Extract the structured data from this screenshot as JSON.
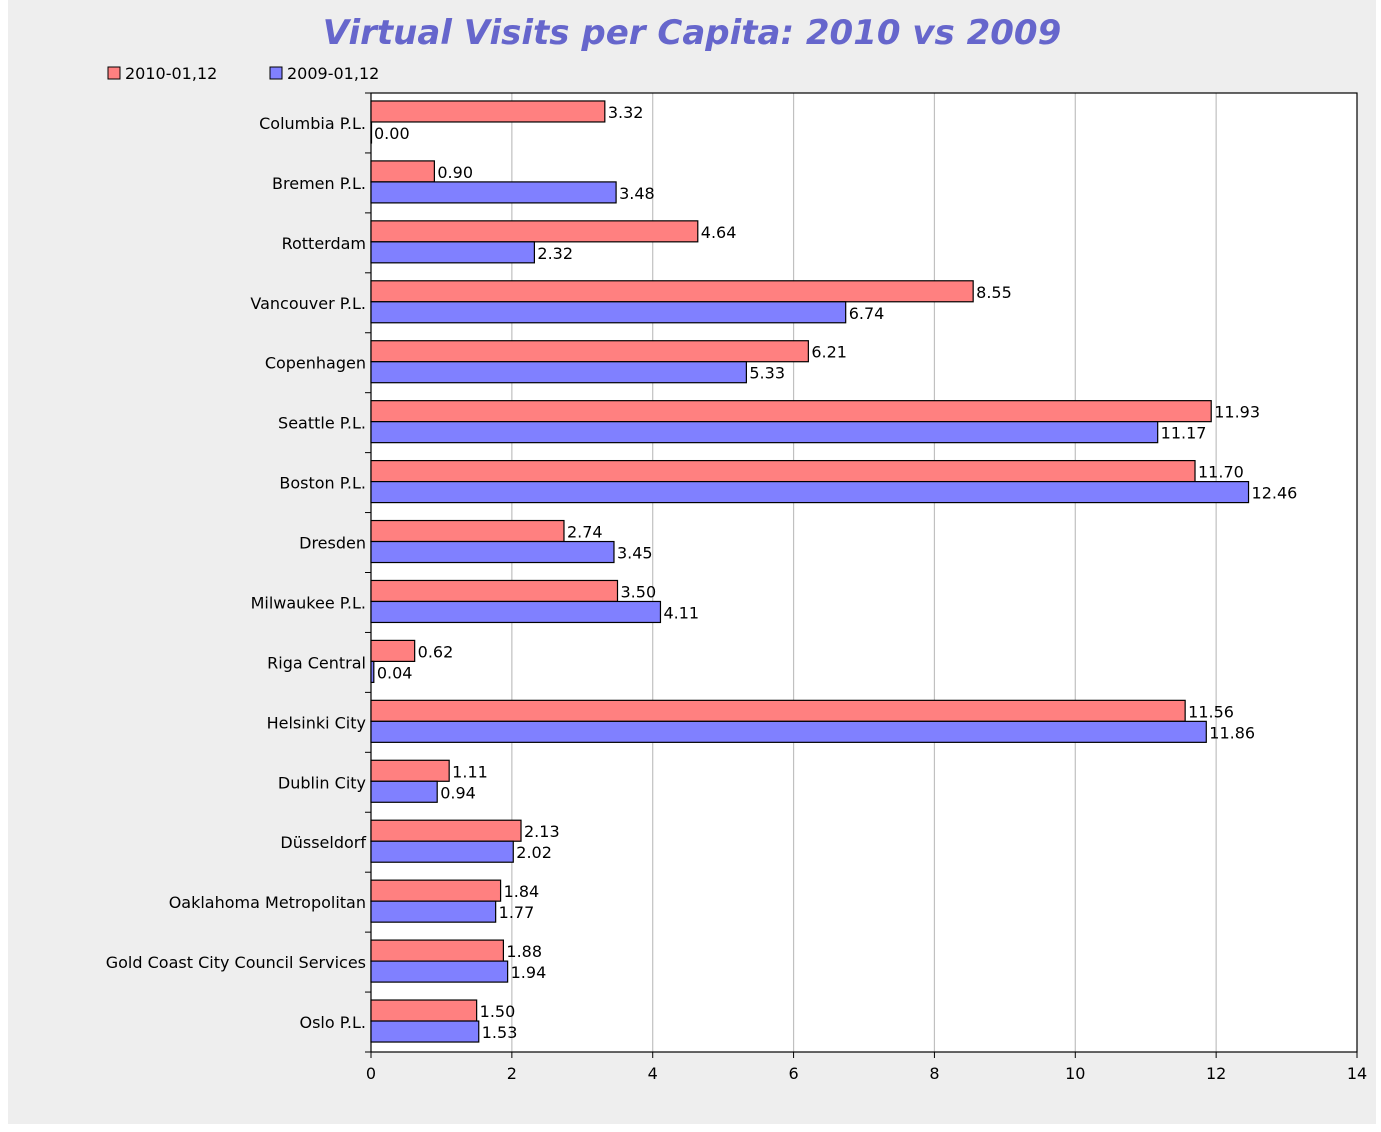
{
  "chart_data": {
    "type": "bar",
    "orientation": "horizontal",
    "title": "Virtual Visits per Capita: 2010 vs 2009",
    "xlabel": "",
    "ylabel": "",
    "xlim": [
      0,
      14
    ],
    "x_ticks": [
      0,
      2,
      4,
      6,
      8,
      10,
      12,
      14
    ],
    "grid": true,
    "legend_position": "top-left",
    "categories": [
      "Columbia P.L.",
      "Bremen P.L.",
      "Rotterdam",
      "Vancouver P.L.",
      "Copenhagen",
      "Seattle P.L.",
      "Boston P.L.",
      "Dresden",
      "Milwaukee P.L.",
      "Riga Central",
      "Helsinki City",
      "Dublin City",
      "Düsseldorf",
      "Oaklahoma Metropolitan",
      "Gold Coast City Council Services",
      "Oslo P.L."
    ],
    "series": [
      {
        "name": "2010-01,12",
        "color": "#ff8080",
        "values": [
          3.32,
          0.9,
          4.64,
          8.55,
          6.21,
          11.93,
          11.7,
          2.74,
          3.5,
          0.62,
          11.56,
          1.11,
          2.13,
          1.84,
          1.88,
          1.5
        ],
        "labels": [
          "3.32",
          "0.90",
          "4.64",
          "8.55",
          "6.21",
          "11.93",
          "11.70",
          "2.74",
          "3.50",
          "0.62",
          "11.56",
          "1.11",
          "2.13",
          "1.84",
          "1.88",
          "1.50"
        ]
      },
      {
        "name": "2009-01,12",
        "color": "#8080ff",
        "values": [
          0.0,
          3.48,
          2.32,
          6.74,
          5.33,
          11.17,
          12.46,
          3.45,
          4.11,
          0.04,
          11.86,
          0.94,
          2.02,
          1.77,
          1.94,
          1.53
        ],
        "labels": [
          "0.00",
          "3.48",
          "2.32",
          "6.74",
          "5.33",
          "11.17",
          "12.46",
          "3.45",
          "4.11",
          "0.04",
          "11.86",
          "0.94",
          "2.02",
          "1.77",
          "1.94",
          "1.53"
        ]
      }
    ],
    "title_color": "#6666cc",
    "grid_color": "#c0c0c0",
    "background_color": "#eeeeee",
    "plot_background_color": "#ffffff"
  }
}
